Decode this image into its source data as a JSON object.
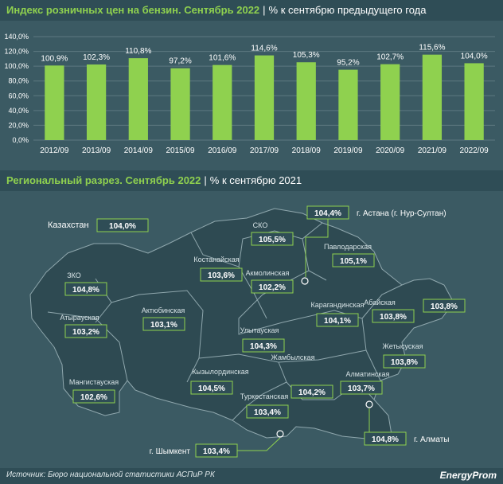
{
  "header1": {
    "title": "Индекс розничных цен на бензин. Сентябрь 2022",
    "subtitle": "% к сентябрю предыдущего года"
  },
  "header2": {
    "title": "Региональный разрез. Сентябрь 2022",
    "subtitle": "% к сентябрю 2021"
  },
  "chart_data": {
    "type": "bar",
    "categories": [
      "2012/09",
      "2013/09",
      "2014/09",
      "2015/09",
      "2016/09",
      "2017/09",
      "2018/09",
      "2019/09",
      "2020/09",
      "2021/09",
      "2022/09"
    ],
    "values": [
      100.9,
      102.3,
      110.8,
      97.2,
      101.6,
      114.6,
      105.3,
      95.2,
      102.7,
      115.6,
      104.0
    ],
    "value_labels": [
      "100,9%",
      "102,3%",
      "110,8%",
      "97,2%",
      "101,6%",
      "114,6%",
      "105,3%",
      "95,2%",
      "102,7%",
      "115,6%",
      "104,0%"
    ],
    "ylim": [
      0,
      140
    ],
    "yticks": [
      0,
      20,
      40,
      60,
      80,
      100,
      120,
      140
    ],
    "ytick_labels": [
      "0,0%",
      "20,0%",
      "40,0%",
      "60,0%",
      "80,0%",
      "100,0%",
      "120,0%",
      "140,0%"
    ],
    "grid": true,
    "bar_color": "#8fd14f"
  },
  "map": {
    "country": {
      "name": "Казахстан",
      "value": "104,0%"
    },
    "regions": [
      {
        "name": "ЗКО",
        "value": "104,8%"
      },
      {
        "name": "Атырауская",
        "value": "103,2%"
      },
      {
        "name": "Мангистауская",
        "value": "102,6%"
      },
      {
        "name": "Актюбинская",
        "value": "103,1%"
      },
      {
        "name": "Костанайская",
        "value": "103,6%"
      },
      {
        "name": "СКО",
        "value": "105,5%"
      },
      {
        "name": "Акмолинская",
        "value": "102,2%"
      },
      {
        "name": "Павлодарская",
        "value": "105,1%"
      },
      {
        "name": "Карагандинская",
        "value": "104,1%"
      },
      {
        "name": "Улытауская",
        "value": "104,3%"
      },
      {
        "name": "Абайская",
        "value": "103,8%"
      },
      {
        "name": "ВКО",
        "value": "103,8%"
      },
      {
        "name": "Жетысуская",
        "value": "103,8%"
      },
      {
        "name": "Кызылординская",
        "value": "104,5%"
      },
      {
        "name": "Жамбылская",
        "value": "104,2%"
      },
      {
        "name": "Туркестанская",
        "value": "103,4%"
      },
      {
        "name": "Алматинская",
        "value": "103,7%"
      }
    ],
    "cities": [
      {
        "name": "г. Астана (г. Нур-Султан)",
        "value": "104,4%"
      },
      {
        "name": "г. Алматы",
        "value": "104,8%"
      },
      {
        "name": "г. Шымкент",
        "value": "103,4%"
      }
    ],
    "fill_color": "#2e4a52",
    "border_color": "#8fa7ad",
    "badge_border": "#8fd14f"
  },
  "footer": {
    "source": "Источник: Бюро национальной статистики АСПиР РК",
    "brand": "EnergyProm"
  }
}
